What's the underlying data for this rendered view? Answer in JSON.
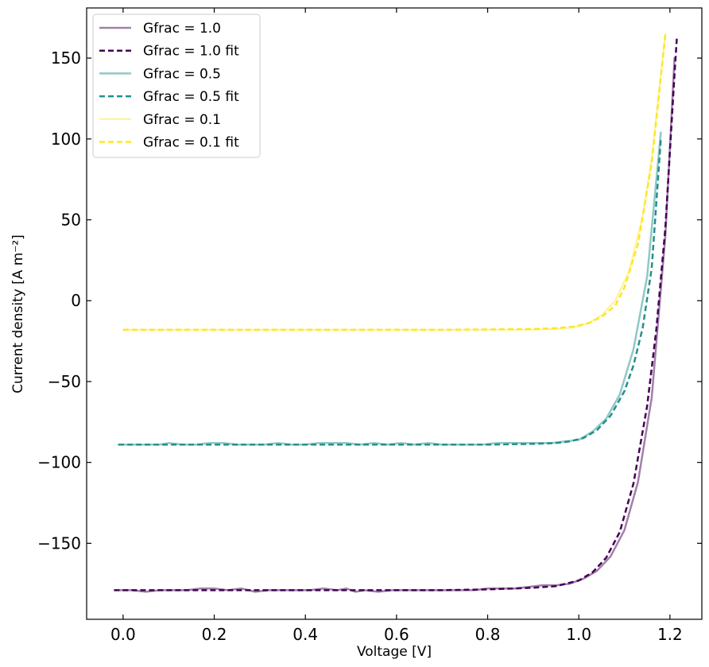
{
  "chart_data": {
    "type": "line",
    "xlabel": "Voltage [V]",
    "ylabel": "Current density [A m⁻²]",
    "xlim": [
      -0.08,
      1.27
    ],
    "ylim": [
      -197,
      181
    ],
    "xticks": [
      0.0,
      0.2,
      0.4,
      0.6,
      0.8,
      1.0,
      1.2
    ],
    "xtick_labels": [
      "0.0",
      "0.2",
      "0.4",
      "0.6",
      "0.8",
      "1.0",
      "1.2"
    ],
    "yticks": [
      -150,
      -100,
      -50,
      0,
      50,
      100,
      150
    ],
    "ytick_labels": [
      "−150",
      "−100",
      "−50",
      "0",
      "50",
      "100",
      "150"
    ],
    "grid": false,
    "legend_position": "top-left",
    "series": [
      {
        "name": "Gfrac = 1.0",
        "style": "solid",
        "color": "#440154",
        "opacity": 0.5,
        "width": 2.5,
        "x": [
          -0.01,
          0.02,
          0.05,
          0.08,
          0.11,
          0.14,
          0.17,
          0.2,
          0.23,
          0.26,
          0.29,
          0.32,
          0.35,
          0.38,
          0.41,
          0.44,
          0.47,
          0.49,
          0.51,
          0.53,
          0.56,
          0.59,
          0.62,
          0.65,
          0.68,
          0.71,
          0.74,
          0.77,
          0.8,
          0.83,
          0.86,
          0.89,
          0.92,
          0.95,
          0.98,
          1.01,
          1.04,
          1.07,
          1.1,
          1.13,
          1.16,
          1.19,
          1.21
        ],
        "y": [
          -179,
          -179,
          -180,
          -179,
          -179,
          -179,
          -178,
          -178,
          -179,
          -178,
          -180,
          -179,
          -179,
          -179,
          -179,
          -178,
          -179,
          -178,
          -180,
          -179,
          -180,
          -179,
          -179,
          -179,
          -179,
          -179,
          -179,
          -179,
          -178,
          -178,
          -178,
          -177,
          -176,
          -176,
          -175,
          -172,
          -167,
          -158,
          -142,
          -112,
          -60,
          40,
          150
        ]
      },
      {
        "name": "Gfrac = 1.0 fit",
        "style": "dashed",
        "color": "#440154",
        "opacity": 1.0,
        "width": 2.5,
        "x": [
          -0.02,
          0.1,
          0.3,
          0.5,
          0.7,
          0.8,
          0.9,
          0.95,
          1.0,
          1.03,
          1.06,
          1.09,
          1.12,
          1.15,
          1.17,
          1.19,
          1.21,
          1.215
        ],
        "y": [
          -179,
          -179,
          -179,
          -179,
          -179,
          -178.5,
          -177.5,
          -176.5,
          -173,
          -168,
          -159,
          -143,
          -113,
          -65,
          -18,
          45,
          140,
          162
        ]
      },
      {
        "name": "Gfrac = 0.5",
        "style": "solid",
        "color": "#21918c",
        "opacity": 0.5,
        "width": 2.5,
        "x": [
          -0.01,
          0.02,
          0.05,
          0.08,
          0.1,
          0.13,
          0.16,
          0.19,
          0.22,
          0.25,
          0.28,
          0.31,
          0.34,
          0.37,
          0.4,
          0.43,
          0.46,
          0.49,
          0.52,
          0.55,
          0.58,
          0.61,
          0.64,
          0.67,
          0.7,
          0.73,
          0.76,
          0.79,
          0.82,
          0.85,
          0.88,
          0.91,
          0.94,
          0.97,
          1.0,
          1.03,
          1.06,
          1.09,
          1.12,
          1.15,
          1.18
        ],
        "y": [
          -89,
          -89,
          -89,
          -89,
          -88,
          -89,
          -89,
          -88,
          -88,
          -89,
          -89,
          -89,
          -88,
          -89,
          -89,
          -88,
          -88,
          -88,
          -89,
          -88,
          -89,
          -88,
          -89,
          -88,
          -89,
          -89,
          -89,
          -89,
          -88,
          -88,
          -88,
          -88,
          -88,
          -87,
          -86,
          -81,
          -73,
          -58,
          -30,
          15,
          104
        ]
      },
      {
        "name": "Gfrac = 0.5 fit",
        "style": "dashed",
        "color": "#21918c",
        "opacity": 1.0,
        "width": 2.5,
        "x": [
          -0.01,
          0.2,
          0.4,
          0.6,
          0.8,
          0.9,
          0.95,
          0.98,
          1.01,
          1.04,
          1.07,
          1.1,
          1.12,
          1.14,
          1.16,
          1.18
        ],
        "y": [
          -89,
          -89,
          -89,
          -89,
          -89,
          -88.5,
          -88,
          -87,
          -85,
          -80,
          -71,
          -56,
          -40,
          -17,
          20,
          100
        ]
      },
      {
        "name": "Gfrac = 0.1",
        "style": "solid",
        "color": "#fde725",
        "opacity": 0.5,
        "width": 2.0,
        "x": [
          0.0,
          0.1,
          0.2,
          0.3,
          0.4,
          0.5,
          0.6,
          0.7,
          0.8,
          0.9,
          0.95,
          0.99,
          1.02,
          1.05,
          1.08,
          1.11,
          1.14,
          1.16,
          1.19
        ],
        "y": [
          -18,
          -18,
          -18,
          -18,
          -18,
          -18,
          -18,
          -18,
          -18,
          -18,
          -17.5,
          -16.5,
          -14,
          -9,
          0,
          18,
          52,
          88,
          165
        ]
      },
      {
        "name": "Gfrac = 0.1 fit",
        "style": "dashed",
        "color": "#fde725",
        "opacity": 1.0,
        "width": 2.5,
        "x": [
          0.0,
          0.1,
          0.2,
          0.3,
          0.4,
          0.5,
          0.6,
          0.7,
          0.8,
          0.9,
          0.95,
          0.99,
          1.02,
          1.05,
          1.08,
          1.1,
          1.13,
          1.16,
          1.19
        ],
        "y": [
          -18,
          -18,
          -18,
          -18,
          -18,
          -18,
          -18,
          -18,
          -17.8,
          -17.5,
          -17,
          -16,
          -14,
          -10,
          -3,
          8,
          35,
          85,
          165
        ]
      }
    ]
  }
}
